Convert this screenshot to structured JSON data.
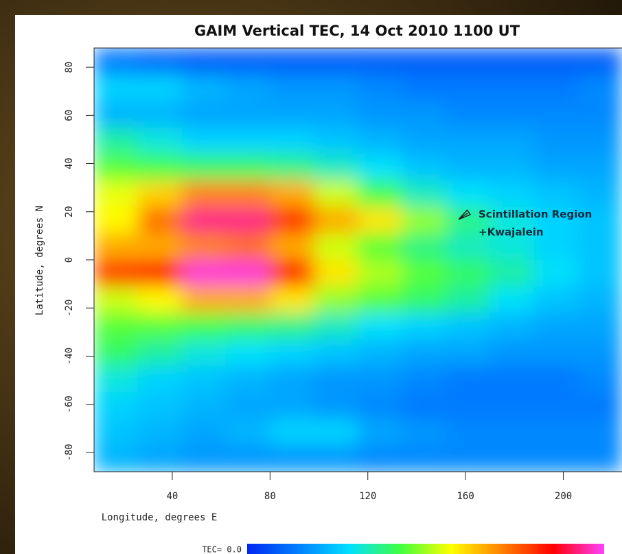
{
  "chart_data": {
    "type": "heatmap",
    "title": "GAIM Vertical TEC, 14 Oct 2010 1100 UT",
    "xlabel": "Longitude, degrees E",
    "ylabel": "Latitude, degrees N",
    "xlim": [
      8,
      224
    ],
    "ylim": [
      -88,
      88
    ],
    "xticks": [
      40,
      80,
      120,
      160,
      200
    ],
    "yticks": [
      80,
      60,
      40,
      20,
      0,
      -20,
      -40,
      -60,
      -80
    ],
    "x_edges": [
      8,
      26,
      44,
      62,
      80,
      98,
      116,
      134,
      152,
      170,
      188,
      206,
      224
    ],
    "y_edges": [
      88,
      77,
      66,
      55,
      44,
      33,
      22,
      11,
      0,
      -11,
      -22,
      -33,
      -44,
      -55,
      -66,
      -77,
      -88
    ],
    "zlim": [
      0,
      45
    ],
    "colormap": [
      "#0028f0",
      "#0080ff",
      "#00e0ff",
      "#40ff40",
      "#ffff00",
      "#ff8000",
      "#ff0000",
      "#ff40ff"
    ],
    "z": [
      [
        6,
        5,
        4,
        4,
        4,
        4,
        4,
        4,
        4,
        4,
        4,
        4
      ],
      [
        12,
        12,
        10,
        9,
        8,
        8,
        7,
        6,
        6,
        6,
        6,
        7
      ],
      [
        10,
        10,
        9,
        9,
        9,
        9,
        8,
        8,
        7,
        7,
        7,
        7
      ],
      [
        16,
        14,
        12,
        12,
        12,
        11,
        10,
        9,
        9,
        9,
        8,
        8
      ],
      [
        20,
        19,
        18,
        18,
        17,
        15,
        13,
        11,
        10,
        10,
        9,
        9
      ],
      [
        25,
        28,
        32,
        32,
        30,
        24,
        19,
        15,
        13,
        12,
        11,
        10
      ],
      [
        26,
        33,
        42,
        42,
        36,
        30,
        27,
        22,
        17,
        14,
        12,
        11
      ],
      [
        30,
        30,
        32,
        33,
        30,
        24,
        20,
        17,
        15,
        14,
        12,
        11
      ],
      [
        36,
        38,
        44,
        44,
        37,
        27,
        23,
        20,
        18,
        16,
        13,
        11
      ],
      [
        24,
        26,
        30,
        30,
        27,
        22,
        20,
        18,
        16,
        13,
        11,
        10
      ],
      [
        20,
        20,
        19,
        18,
        17,
        15,
        13,
        12,
        11,
        10,
        9,
        9
      ],
      [
        18,
        16,
        14,
        13,
        12,
        11,
        10,
        9,
        9,
        8,
        8,
        8
      ],
      [
        14,
        12,
        11,
        10,
        9,
        8,
        8,
        7,
        6,
        6,
        6,
        7
      ],
      [
        12,
        11,
        10,
        9,
        9,
        8,
        7,
        6,
        6,
        6,
        6,
        6
      ],
      [
        11,
        10,
        9,
        10,
        12,
        12,
        9,
        8,
        7,
        7,
        7,
        7
      ],
      [
        10,
        9,
        8,
        8,
        8,
        8,
        7,
        7,
        7,
        7,
        7,
        7
      ]
    ],
    "colorbar_label": "TEC= 0.0",
    "annotations": [
      "Scintillation Region",
      "+Kwajalein"
    ]
  }
}
